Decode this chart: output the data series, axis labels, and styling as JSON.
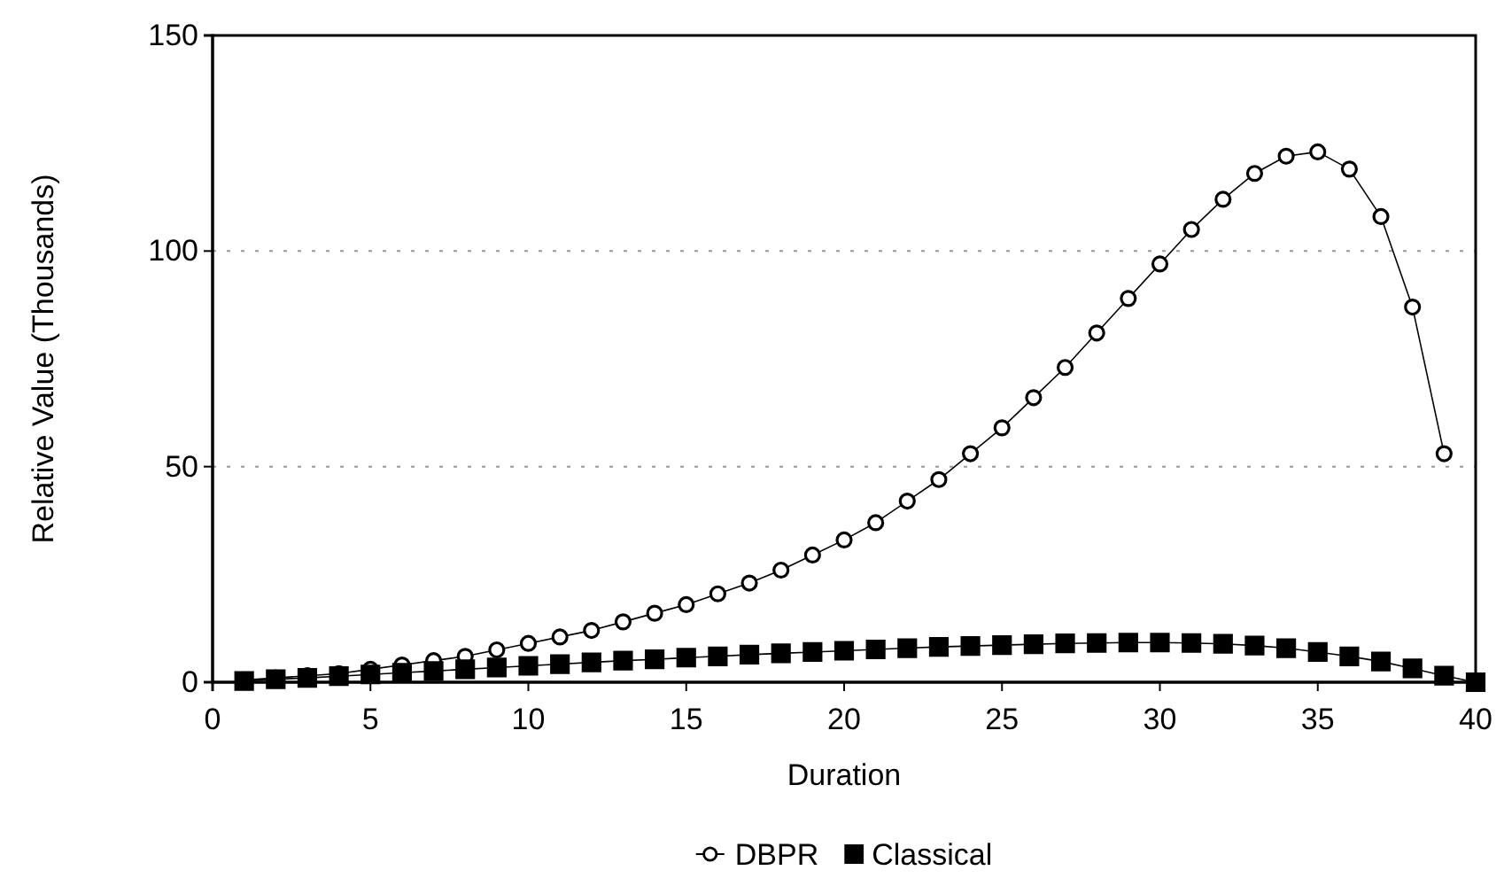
{
  "chart_data": {
    "type": "line",
    "xlabel": "Duration",
    "ylabel": "Relative Value (Thousands)",
    "x": [
      1,
      2,
      3,
      4,
      5,
      6,
      7,
      8,
      9,
      10,
      11,
      12,
      13,
      14,
      15,
      16,
      17,
      18,
      19,
      20,
      21,
      22,
      23,
      24,
      25,
      26,
      27,
      28,
      29,
      30,
      31,
      32,
      33,
      34,
      35,
      36,
      37,
      38,
      39,
      40
    ],
    "series": [
      {
        "name": "DBPR",
        "color": "#000000",
        "marker": "circle",
        "values": [
          0.5,
          1,
          1.5,
          2,
          3,
          4,
          5,
          6,
          7.5,
          9,
          10.5,
          12,
          14,
          16,
          18,
          20.5,
          23,
          26,
          29.5,
          33,
          37,
          42,
          47,
          53,
          59,
          66,
          73,
          81,
          89,
          97,
          105,
          112,
          118,
          122,
          123,
          119,
          108,
          87,
          53,
          null
        ]
      },
      {
        "name": "Classical",
        "color": "#000000",
        "marker": "square",
        "values": [
          0.3,
          0.7,
          1,
          1.4,
          1.8,
          2.2,
          2.6,
          3,
          3.4,
          3.8,
          4.2,
          4.6,
          5,
          5.3,
          5.7,
          6,
          6.4,
          6.7,
          7,
          7.3,
          7.6,
          7.9,
          8.2,
          8.4,
          8.6,
          8.8,
          9,
          9.1,
          9.2,
          9.2,
          9.1,
          8.9,
          8.5,
          7.9,
          7,
          6,
          4.8,
          3.2,
          1.5,
          0
        ]
      }
    ],
    "xlim": [
      0,
      40
    ],
    "xticks": [
      0,
      5,
      10,
      15,
      20,
      25,
      30,
      35,
      40
    ],
    "ylim": [
      0,
      150
    ],
    "yticks": [
      0,
      50,
      100,
      150
    ],
    "grid": "y",
    "legend": "bottom",
    "line_style": "solid"
  }
}
